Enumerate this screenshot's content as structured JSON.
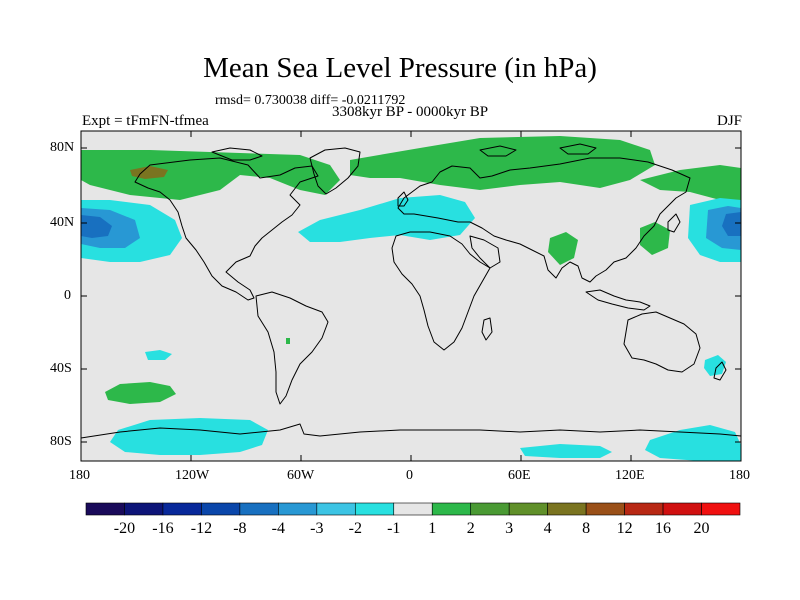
{
  "title": "Mean Sea Level Pressure (in hPa)",
  "stats": "rmsd= 0.730038 diff= -0.0211792",
  "period": "3308kyr BP - 0000kyr BP",
  "experiment": "Expt = tFmFN-tfmea",
  "season": "DJF",
  "y_ticks": [
    "80N",
    "40N",
    "0",
    "40S",
    "80S"
  ],
  "x_ticks": [
    "180",
    "120W",
    "60W",
    "0",
    "60E",
    "120E",
    "180"
  ],
  "colorbar_labels": [
    "-20",
    "-16",
    "-12",
    "-8",
    "-4",
    "-3",
    "-2",
    "-1",
    "1",
    "2",
    "3",
    "4",
    "8",
    "12",
    "16",
    "20"
  ],
  "colorbar_colors": [
    "#1a0a5a",
    "#0d1478",
    "#08289a",
    "#0a46aa",
    "#1870c0",
    "#2898d4",
    "#3cc4e4",
    "#28e0e0",
    "#e6e6e6",
    "#2db84a",
    "#4a9a34",
    "#60902a",
    "#7a7420",
    "#9a5018",
    "#b82814",
    "#d01010",
    "#f01010"
  ],
  "colors": {
    "neutral": "#e6e6e6",
    "land_outline": "#000000",
    "cyan": "#28e0e0",
    "blue_mid": "#2898d4",
    "blue_deep": "#1870c0",
    "green": "#2db84a",
    "brown": "#7a7420"
  }
}
